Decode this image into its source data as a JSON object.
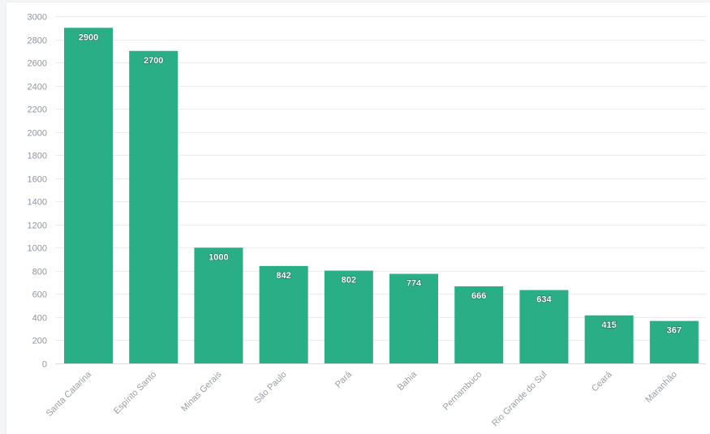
{
  "chart_data": {
    "type": "bar",
    "title": "",
    "xlabel": "",
    "ylabel": "",
    "categories": [
      "Santa Catarina",
      "Espírito Santo",
      "Minas Gerais",
      "São Paulo",
      "Pará",
      "Bahia",
      "Pernambuco",
      "Rio Grande do Sul",
      "Ceará",
      "Maranhão"
    ],
    "values": [
      2900,
      2700,
      1000,
      842,
      802,
      774,
      666,
      634,
      415,
      367
    ],
    "data_labels": [
      "2900",
      "2700",
      "1000",
      "842",
      "802",
      "774",
      "666",
      "634",
      "415",
      "367"
    ],
    "ylim": [
      0,
      3000
    ],
    "yticks": [
      0,
      200,
      400,
      600,
      800,
      1000,
      1200,
      1400,
      1600,
      1800,
      2000,
      2200,
      2400,
      2600,
      2800,
      3000
    ],
    "grid": true,
    "legend": "none",
    "bar_color": "#2aae85",
    "data_label_color": "#ffffff"
  }
}
